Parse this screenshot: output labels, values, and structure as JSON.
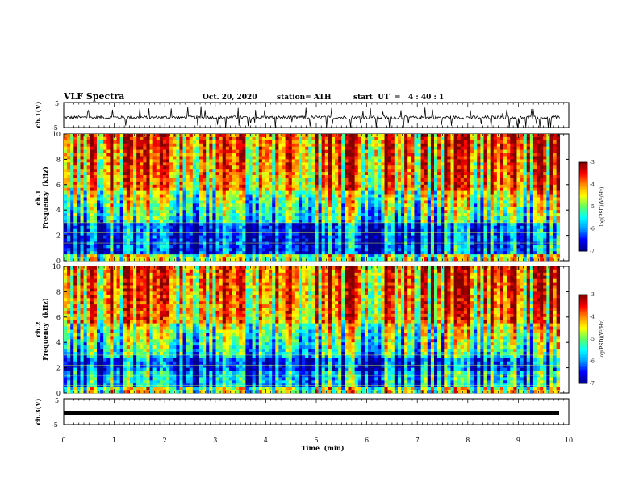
{
  "header": {
    "title": "VLF Spectra",
    "date": "Oct. 20, 2020",
    "station": "station= ATH",
    "start": "start  UT  =   4 : 40 : 1"
  },
  "chart_data": [
    {
      "type": "line",
      "name": "ch1-waveform",
      "ylabel": "ch.1(V)",
      "ylim": [
        -5,
        5
      ],
      "yticks": [
        "5",
        "-5"
      ],
      "xlim": [
        0,
        10
      ],
      "signal": "noisy waveform around -1 V with frequent spikes"
    },
    {
      "type": "heatmap",
      "name": "ch1-spectrogram",
      "ylabel": "ch.1\nFrequency  (kHz)",
      "ylabel_lines": [
        "ch.1",
        "Frequency  (kHz)"
      ],
      "ylim": [
        0,
        10
      ],
      "yticks": [
        "0",
        "2",
        "4",
        "6",
        "8",
        "10"
      ],
      "xlim": [
        0,
        10
      ],
      "colorbar": {
        "label": "log(PSD)(V²/Hz)",
        "range": [
          -7,
          -3
        ],
        "ticks": [
          "-3",
          "-4",
          "-5",
          "-6",
          "-7"
        ]
      }
    },
    {
      "type": "heatmap",
      "name": "ch2-spectrogram",
      "ylabel": "ch.2\nFrequency  (kHz)",
      "ylabel_lines": [
        "ch.2",
        "Frequency  (kHz)"
      ],
      "ylim": [
        0,
        10
      ],
      "yticks": [
        "0",
        "2",
        "4",
        "6",
        "8",
        "10"
      ],
      "xlim": [
        0,
        10
      ],
      "colorbar": {
        "label": "log(PSD)(V²/Hz)",
        "range": [
          -7,
          -3
        ],
        "ticks": [
          "-3",
          "-4",
          "-5",
          "-6",
          "-7"
        ]
      }
    },
    {
      "type": "line",
      "name": "ch3-waveform",
      "ylabel": "ch.3(V)",
      "ylim": [
        -5,
        5
      ],
      "yticks": [
        "5",
        "-5"
      ],
      "xlim": [
        0,
        10
      ],
      "signal": "thick flat line near -1.5 V"
    }
  ],
  "x_axis": {
    "label": "Time  (min)",
    "ticks": [
      "0",
      "1",
      "2",
      "3",
      "4",
      "5",
      "6",
      "7",
      "8",
      "9",
      "10"
    ],
    "data_end": 9.82
  },
  "colors": {
    "ink": "#000000",
    "colormap": [
      "#000090",
      "#0000ff",
      "#00a0ff",
      "#00ffff",
      "#60ff60",
      "#ffff00",
      "#ff9000",
      "#ff0000",
      "#800000"
    ]
  }
}
